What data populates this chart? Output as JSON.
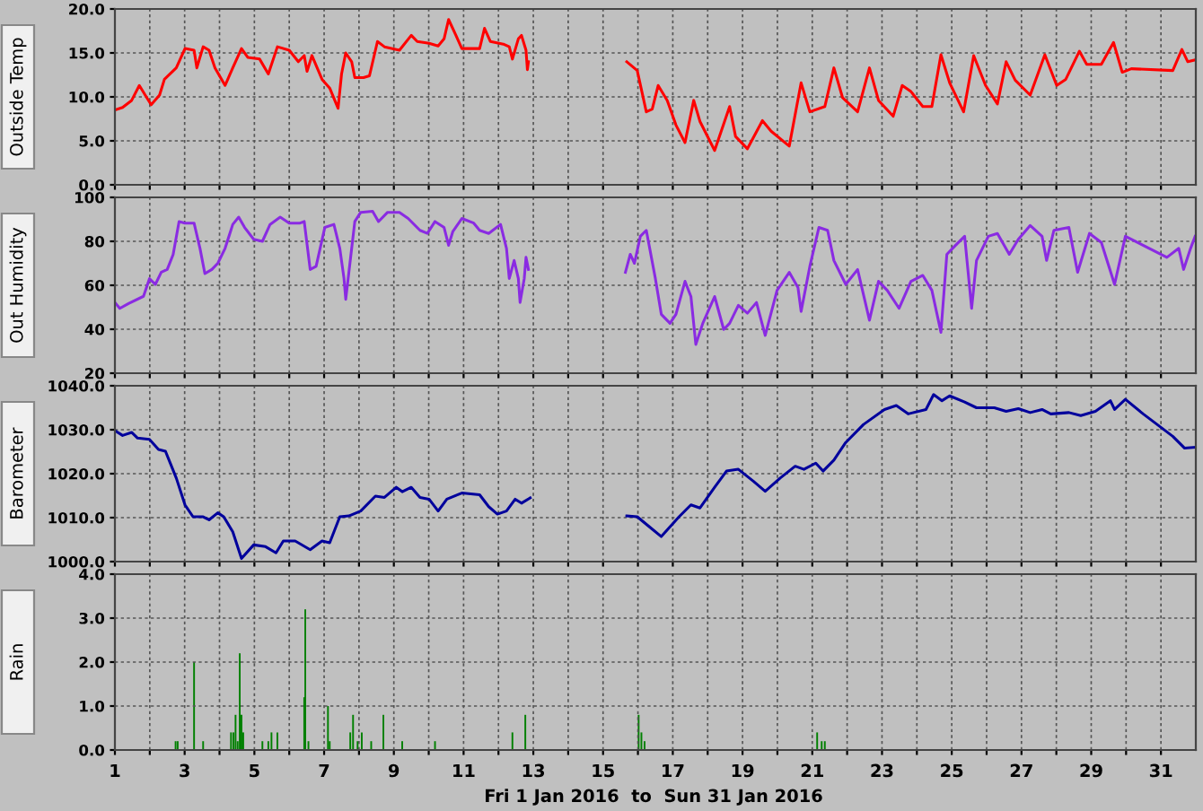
{
  "chart_data": [
    {
      "type": "line",
      "ylabel": "Outside Temp",
      "xlim": [
        1,
        32
      ],
      "ylim": [
        0,
        20
      ],
      "tick_labels": "y",
      "grid": true,
      "xticks": [
        1,
        {
          "value": 2,
          "label": null
        },
        3,
        {
          "value": 4,
          "label": null
        },
        5,
        {
          "value": 6,
          "label": null
        },
        7,
        {
          "value": 8,
          "label": null
        },
        9,
        {
          "value": 10,
          "label": null
        },
        11,
        {
          "value": 12,
          "label": null
        },
        13,
        {
          "value": 14,
          "label": null
        },
        15,
        {
          "value": 16,
          "label": null
        },
        17,
        {
          "value": 18,
          "label": null
        },
        19,
        {
          "value": 20,
          "label": null
        },
        21,
        {
          "value": 22,
          "label": null
        },
        23,
        {
          "value": 24,
          "label": null
        },
        25,
        {
          "value": 26,
          "label": null
        },
        27,
        {
          "value": 28,
          "label": null
        },
        29,
        {
          "value": 30,
          "label": null
        },
        31
      ],
      "yticks": [
        {
          "value": 0,
          "label": "0.0"
        },
        {
          "value": 5,
          "label": "5.0"
        },
        {
          "value": 10,
          "label": "10.0"
        },
        {
          "value": 15,
          "label": "15.0"
        },
        {
          "value": 20,
          "label": "20.0"
        }
      ],
      "series": [
        {
          "color": "#ff0000",
          "x": [
            1.0,
            1.22,
            1.48,
            1.7,
            1.9,
            2.04,
            2.28,
            2.42,
            2.76,
            3.01,
            3.27,
            3.35,
            3.53,
            3.7,
            3.87,
            4.16,
            4.38,
            4.63,
            4.81,
            5.15,
            5.4,
            5.66,
            6.0,
            6.26,
            6.43,
            6.51,
            6.65,
            6.94,
            7.16,
            7.37,
            7.4,
            7.5,
            7.62,
            7.79,
            7.88,
            8.13,
            8.3,
            8.53,
            8.73,
            9.16,
            9.5,
            9.67,
            10.01,
            10.27,
            10.44,
            10.57,
            10.78,
            10.95,
            11.46,
            11.6,
            11.77,
            12.14,
            12.31,
            12.4,
            12.57,
            12.66,
            12.79,
            12.83,
            12.86,
            14.0,
            15.68,
            15.98,
            16.24,
            16.41,
            16.58,
            16.84,
            17.09,
            17.35,
            17.6,
            17.78,
            18.2,
            18.63,
            18.8,
            19.14,
            19.57,
            19.82,
            20.34,
            20.68,
            20.93,
            21.36,
            21.62,
            21.87,
            22.3,
            22.64,
            22.9,
            23.32,
            23.58,
            23.83,
            24.17,
            24.43,
            24.69,
            24.94,
            25.34,
            25.63,
            25.97,
            26.31,
            26.56,
            26.82,
            27.25,
            27.67,
            28.01,
            28.27,
            28.66,
            28.87,
            29.29,
            29.64,
            29.89,
            30.15,
            31.34,
            31.6,
            31.77,
            31.98
          ],
          "values": [
            8.5,
            8.8,
            9.6,
            11.3,
            10.0,
            9.1,
            10.2,
            12.0,
            13.3,
            15.5,
            15.3,
            13.3,
            15.7,
            15.3,
            13.3,
            11.3,
            13.3,
            15.5,
            14.5,
            14.3,
            12.6,
            15.7,
            15.3,
            14.0,
            14.7,
            12.9,
            14.7,
            12.0,
            11.0,
            9.0,
            8.7,
            12.6,
            15.0,
            14.0,
            12.2,
            12.2,
            12.4,
            16.3,
            15.7,
            15.3,
            17.0,
            16.3,
            16.1,
            15.8,
            16.6,
            18.8,
            17.0,
            15.5,
            15.5,
            17.8,
            16.3,
            16.0,
            15.7,
            14.3,
            16.6,
            17.0,
            15.3,
            13.1,
            14.0,
            null,
            14.0,
            13.0,
            8.3,
            8.6,
            11.3,
            9.6,
            6.8,
            4.8,
            9.6,
            7.2,
            3.9,
            8.9,
            5.5,
            4.1,
            7.3,
            6.1,
            4.4,
            11.6,
            8.3,
            8.9,
            13.3,
            9.9,
            8.3,
            13.3,
            9.6,
            7.8,
            11.3,
            10.6,
            8.9,
            8.9,
            14.8,
            11.6,
            8.3,
            14.7,
            11.3,
            9.2,
            14.0,
            11.9,
            10.2,
            14.8,
            11.3,
            12.0,
            15.2,
            13.7,
            13.7,
            16.2,
            12.8,
            13.2,
            13.0,
            15.4,
            14.0,
            14.2
          ]
        }
      ]
    },
    {
      "type": "line",
      "ylabel": "Out Humidity",
      "xlim": [
        1,
        32
      ],
      "ylim": [
        20,
        100
      ],
      "tick_labels": "y",
      "grid": true,
      "xticks": [
        1,
        {
          "value": 2,
          "label": null
        },
        3,
        {
          "value": 4,
          "label": null
        },
        5,
        {
          "value": 6,
          "label": null
        },
        7,
        {
          "value": 8,
          "label": null
        },
        9,
        {
          "value": 10,
          "label": null
        },
        11,
        {
          "value": 12,
          "label": null
        },
        13,
        {
          "value": 14,
          "label": null
        },
        15,
        {
          "value": 16,
          "label": null
        },
        17,
        {
          "value": 18,
          "label": null
        },
        19,
        {
          "value": 20,
          "label": null
        },
        21,
        {
          "value": 22,
          "label": null
        },
        23,
        {
          "value": 24,
          "label": null
        },
        25,
        {
          "value": 26,
          "label": null
        },
        27,
        {
          "value": 28,
          "label": null
        },
        29,
        {
          "value": 30,
          "label": null
        },
        31
      ],
      "yticks": [
        20,
        40,
        60,
        80,
        100
      ],
      "series": [
        {
          "color": "#8a2be2",
          "x": [
            1.0,
            1.14,
            1.39,
            1.82,
            1.99,
            2.16,
            2.33,
            2.5,
            2.67,
            2.84,
            3.01,
            3.27,
            3.44,
            3.58,
            3.78,
            3.95,
            4.16,
            4.38,
            4.55,
            4.72,
            4.98,
            5.23,
            5.45,
            5.74,
            6.0,
            6.31,
            6.43,
            6.6,
            6.77,
            7.02,
            7.28,
            7.45,
            7.57,
            7.62,
            7.71,
            7.88,
            8.05,
            8.39,
            8.56,
            8.82,
            9.16,
            9.41,
            9.75,
            9.96,
            10.18,
            10.44,
            10.57,
            10.69,
            10.95,
            11.29,
            11.46,
            11.72,
            12.06,
            12.23,
            12.31,
            12.45,
            12.57,
            12.62,
            12.74,
            12.79,
            12.86,
            14.0,
            15.64,
            15.78,
            15.9,
            16.07,
            16.24,
            16.5,
            16.67,
            16.92,
            17.09,
            17.35,
            17.52,
            17.66,
            17.86,
            18.2,
            18.46,
            18.63,
            18.88,
            19.14,
            19.4,
            19.65,
            19.99,
            20.34,
            20.59,
            20.68,
            20.93,
            21.19,
            21.44,
            21.62,
            21.96,
            22.3,
            22.64,
            22.9,
            23.15,
            23.49,
            23.83,
            24.17,
            24.43,
            24.69,
            24.86,
            25.11,
            25.37,
            25.57,
            25.71,
            26.05,
            26.31,
            26.65,
            26.91,
            27.25,
            27.59,
            27.72,
            27.93,
            28.36,
            28.61,
            28.95,
            29.29,
            29.67,
            29.98,
            31.17,
            31.51,
            31.65,
            31.85,
            31.98
          ],
          "values": [
            52.2,
            49.5,
            51.7,
            55.0,
            63.0,
            60.4,
            66.0,
            67.2,
            74.0,
            89.0,
            88.3,
            88.3,
            76.8,
            65.3,
            67.2,
            70.0,
            76.8,
            87.7,
            91.0,
            86.3,
            80.9,
            80.0,
            87.7,
            91.0,
            88.3,
            88.3,
            89.0,
            67.2,
            68.6,
            86.3,
            87.7,
            76.8,
            63.1,
            53.6,
            65.9,
            89.0,
            93.2,
            93.7,
            89.0,
            93.2,
            93.2,
            90.4,
            85.0,
            83.6,
            89.0,
            86.3,
            78.2,
            84.4,
            90.4,
            88.3,
            85.0,
            83.6,
            87.7,
            76.8,
            63.1,
            71.3,
            63.1,
            52.2,
            63.1,
            72.7,
            67.2,
            null,
            65.9,
            74.1,
            70.0,
            82.3,
            85.0,
            63.1,
            46.8,
            42.7,
            46.8,
            61.8,
            54.9,
            33.1,
            42.7,
            54.9,
            39.9,
            42.7,
            50.9,
            47.3,
            52.2,
            37.2,
            57.7,
            65.9,
            59.0,
            48.1,
            68.6,
            86.3,
            85.0,
            71.3,
            60.4,
            67.2,
            44.1,
            61.8,
            57.7,
            49.5,
            61.8,
            64.5,
            57.7,
            38.6,
            74.1,
            78.2,
            82.3,
            49.5,
            71.3,
            82.3,
            83.6,
            74.1,
            80.9,
            87.2,
            82.3,
            71.3,
            85.0,
            86.3,
            65.9,
            83.6,
            79.5,
            60.4,
            82.3,
            72.7,
            76.8,
            67.2,
            76.8,
            82.3
          ]
        }
      ]
    },
    {
      "type": "line",
      "ylabel": "Barometer",
      "xlim": [
        1,
        32
      ],
      "ylim": [
        1000,
        1040
      ],
      "tick_labels": "y",
      "grid": true,
      "xticks": [
        1,
        {
          "value": 2,
          "label": null
        },
        3,
        {
          "value": 4,
          "label": null
        },
        5,
        {
          "value": 6,
          "label": null
        },
        7,
        {
          "value": 8,
          "label": null
        },
        9,
        {
          "value": 10,
          "label": null
        },
        11,
        {
          "value": 12,
          "label": null
        },
        13,
        {
          "value": 14,
          "label": null
        },
        15,
        {
          "value": 16,
          "label": null
        },
        17,
        {
          "value": 18,
          "label": null
        },
        19,
        {
          "value": 20,
          "label": null
        },
        21,
        {
          "value": 22,
          "label": null
        },
        23,
        {
          "value": 24,
          "label": null
        },
        25,
        {
          "value": 26,
          "label": null
        },
        27,
        {
          "value": 28,
          "label": null
        },
        29,
        {
          "value": 30,
          "label": null
        },
        31
      ],
      "yticks": [
        {
          "value": 1000,
          "label": "1000.0"
        },
        {
          "value": 1010,
          "label": "1010.0"
        },
        {
          "value": 1020,
          "label": "1020.0"
        },
        {
          "value": 1030,
          "label": "1030.0"
        },
        {
          "value": 1040,
          "label": "1040.0"
        }
      ],
      "series": [
        {
          "color": "#00009c",
          "x": [
            1.0,
            1.22,
            1.48,
            1.65,
            1.99,
            2.25,
            2.45,
            2.76,
            3.01,
            3.24,
            3.53,
            3.7,
            3.95,
            4.12,
            4.38,
            4.63,
            4.98,
            5.32,
            5.62,
            5.83,
            6.17,
            6.6,
            6.94,
            7.16,
            7.45,
            7.71,
            8.05,
            8.47,
            8.73,
            9.07,
            9.24,
            9.5,
            9.75,
            10.01,
            10.27,
            10.52,
            10.95,
            11.46,
            11.72,
            11.97,
            12.23,
            12.48,
            12.66,
            12.91,
            14.0,
            15.68,
            15.98,
            16.33,
            16.67,
            17.18,
            17.52,
            17.78,
            18.2,
            18.54,
            18.88,
            19.31,
            19.65,
            20.08,
            20.51,
            20.76,
            21.1,
            21.31,
            21.62,
            21.96,
            22.47,
            23.07,
            23.41,
            23.75,
            24.26,
            24.48,
            24.72,
            24.94,
            25.37,
            25.71,
            26.22,
            26.56,
            26.91,
            27.25,
            27.59,
            27.84,
            28.36,
            28.7,
            29.12,
            29.55,
            29.67,
            29.98,
            30.49,
            31.34,
            31.68,
            31.98
          ],
          "values": [
            1029.8,
            1028.7,
            1029.4,
            1028.1,
            1027.8,
            1025.5,
            1025.1,
            1019.0,
            1012.9,
            1010.2,
            1010.2,
            1009.5,
            1011.1,
            1010.2,
            1006.8,
            1000.7,
            1003.8,
            1003.4,
            1002.0,
            1004.7,
            1004.7,
            1002.7,
            1004.7,
            1004.3,
            1010.2,
            1010.4,
            1011.5,
            1014.9,
            1014.6,
            1016.9,
            1015.9,
            1016.9,
            1014.6,
            1014.2,
            1011.5,
            1014.2,
            1015.6,
            1015.2,
            1012.5,
            1010.8,
            1011.5,
            1014.2,
            1013.3,
            1014.5,
            null,
            1010.4,
            1010.2,
            1007.9,
            1005.7,
            1010.2,
            1012.9,
            1012.2,
            1016.9,
            1020.6,
            1021.0,
            1018.3,
            1016.0,
            1019.0,
            1021.7,
            1021.0,
            1022.4,
            1020.6,
            1023.1,
            1027.1,
            1031.2,
            1034.6,
            1035.5,
            1033.6,
            1034.6,
            1038.0,
            1036.6,
            1037.7,
            1036.3,
            1035.0,
            1035.0,
            1034.2,
            1034.8,
            1033.9,
            1034.6,
            1033.6,
            1033.9,
            1033.2,
            1034.2,
            1036.6,
            1034.6,
            1036.9,
            1033.6,
            1028.5,
            1025.8,
            1026.0
          ]
        }
      ]
    },
    {
      "type": "bar",
      "ylabel": "Rain",
      "xlabel": "Fri 1 Jan 2016  to  Sun 31 Jan 2016",
      "xlim": [
        1,
        32
      ],
      "ylim": [
        0,
        4
      ],
      "grid": true,
      "xticks": [
        1,
        {
          "value": 2,
          "label": null
        },
        3,
        {
          "value": 4,
          "label": null
        },
        5,
        {
          "value": 6,
          "label": null
        },
        7,
        {
          "value": 8,
          "label": null
        },
        9,
        {
          "value": 10,
          "label": null
        },
        11,
        {
          "value": 12,
          "label": null
        },
        13,
        {
          "value": 14,
          "label": null
        },
        15,
        {
          "value": 16,
          "label": null
        },
        17,
        {
          "value": 18,
          "label": null
        },
        19,
        {
          "value": 20,
          "label": null
        },
        21,
        {
          "value": 22,
          "label": null
        },
        23,
        {
          "value": 24,
          "label": null
        },
        25,
        {
          "value": 26,
          "label": null
        },
        27,
        {
          "value": 28,
          "label": null
        },
        29,
        {
          "value": 30,
          "label": null
        },
        31
      ],
      "yticks": [
        {
          "value": 0,
          "label": "0.0"
        },
        {
          "value": 1,
          "label": "1.0"
        },
        {
          "value": 2,
          "label": "2.0"
        },
        {
          "value": 3,
          "label": "3.0"
        },
        {
          "value": 4,
          "label": "4.0"
        }
      ],
      "series": [
        {
          "color": "#008000",
          "x": [
            2.74,
            2.8,
            3.27,
            3.53,
            4.33,
            4.4,
            4.46,
            4.52,
            4.58,
            4.63,
            4.68,
            5.23,
            5.4,
            5.49,
            5.66,
            6.43,
            6.46,
            6.55,
            7.11,
            7.16,
            7.75,
            7.83,
            7.96,
            8.08,
            8.35,
            8.7,
            9.24,
            10.18,
            12.4,
            12.77,
            16.02,
            16.1,
            16.19,
            21.14,
            21.27,
            21.36
          ],
          "values": [
            0.2,
            0.2,
            2.0,
            0.2,
            0.4,
            0.4,
            0.8,
            0.2,
            2.2,
            0.8,
            0.4,
            0.2,
            0.2,
            0.4,
            0.4,
            1.2,
            3.2,
            0.2,
            1.0,
            0.2,
            0.4,
            0.8,
            0.2,
            0.4,
            0.2,
            0.8,
            0.2,
            0.2,
            0.4,
            0.8,
            0.8,
            0.4,
            0.2,
            0.4,
            0.2,
            0.2
          ]
        }
      ]
    }
  ]
}
